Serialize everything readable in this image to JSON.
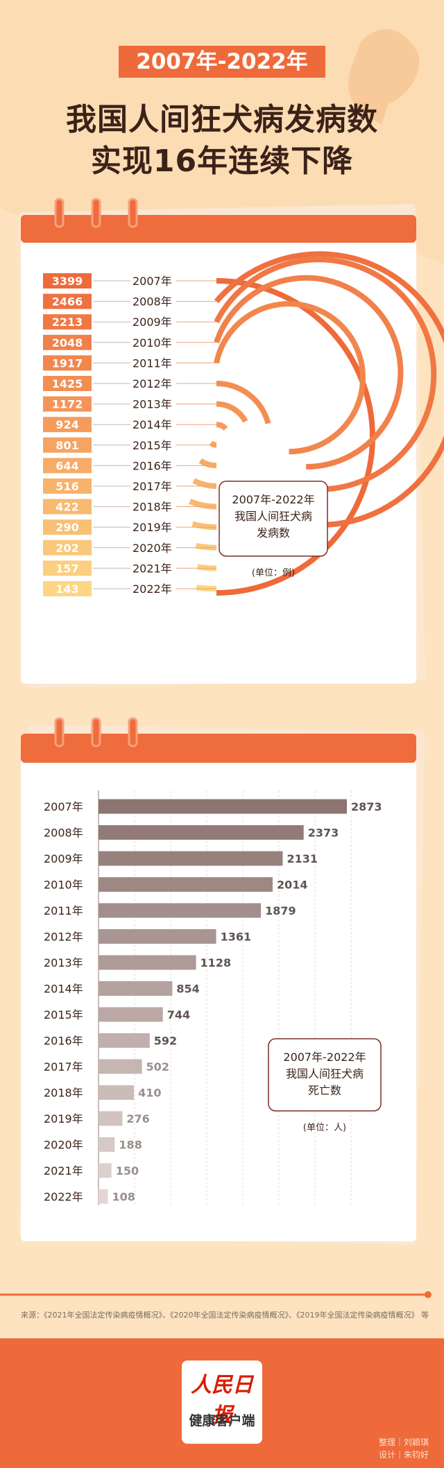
{
  "header": {
    "year_badge": "2007年-2022年",
    "headline_line1": "我国人间狂犬病发病数",
    "headline_line2": "实现16年连续下降"
  },
  "colors": {
    "background": "#fde3c0",
    "accent": "#ee6a3b",
    "bar_dark": "#8c7470"
  },
  "chart_data": [
    {
      "type": "bar",
      "title": "2007年-2022年 我国人间狂犬病 发病数",
      "title_lines": [
        "2007年-2022年",
        "我国人间狂犬病",
        "发病数"
      ],
      "unit": "(单位：例)",
      "categories": [
        "2007年",
        "2008年",
        "2009年",
        "2010年",
        "2011年",
        "2012年",
        "2013年",
        "2014年",
        "2015年",
        "2016年",
        "2017年",
        "2018年",
        "2019年",
        "2020年",
        "2021年",
        "2022年"
      ],
      "values": [
        3399,
        2466,
        2213,
        2048,
        1917,
        1425,
        1172,
        924,
        801,
        644,
        516,
        422,
        290,
        202,
        157,
        143
      ]
    },
    {
      "type": "bar",
      "title": "2007年-2022年 我国人间狂犬病 死亡数",
      "title_lines": [
        "2007年-2022年",
        "我国人间狂犬病",
        "死亡数"
      ],
      "unit": "(单位：人)",
      "categories": [
        "2007年",
        "2008年",
        "2009年",
        "2010年",
        "2011年",
        "2012年",
        "2013年",
        "2014年",
        "2015年",
        "2016年",
        "2017年",
        "2018年",
        "2019年",
        "2020年",
        "2021年",
        "2022年"
      ],
      "values": [
        2873,
        2373,
        2131,
        2014,
        1879,
        1361,
        1128,
        854,
        744,
        592,
        502,
        410,
        276,
        188,
        150,
        108
      ],
      "grid": true
    }
  ],
  "footer": {
    "source": "来源：《2021年全国法定传染病疫情概况》、《2020年全国法定传染病疫情概况》、《2019年全国法定传染病疫情概况》 等",
    "logo_top": "人民日报",
    "logo_bottom": "健康客户端",
    "credit_editor": "整理｜刘颖琪",
    "credit_design": "设计｜朱钧好"
  }
}
